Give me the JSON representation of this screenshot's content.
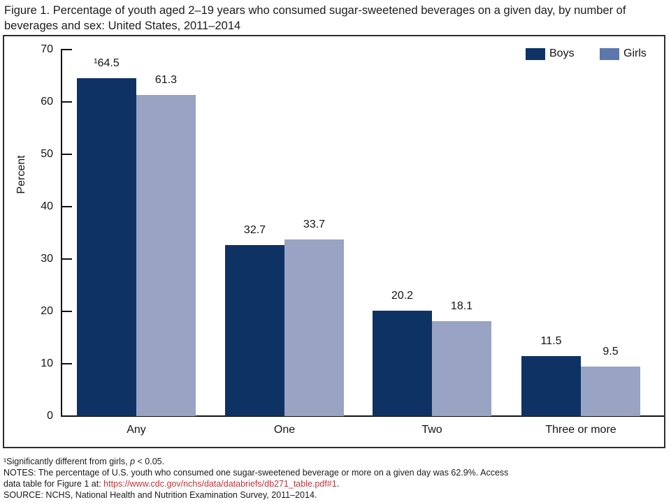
{
  "title_lines": [
    "Figure 1. Percentage of youth aged 2–19 years who consumed sugar-sweetened beverages on a given day, by number of",
    "beverages and sex: United States, 2011–2014"
  ],
  "chart_data": {
    "type": "bar",
    "title": "Figure 1. Percentage of youth aged 2–19 years who consumed sugar-sweetened beverages on a given day, by number of beverages and sex: United States, 2011–2014",
    "categories": [
      "Any",
      "One",
      "Two",
      "Three or more"
    ],
    "series": [
      {
        "name": "Boys",
        "color": "#0e3264",
        "values": [
          64.5,
          32.7,
          20.2,
          11.5
        ],
        "value_labels": [
          "¹64.5",
          "32.7",
          "20.2",
          "11.5"
        ]
      },
      {
        "name": "Girls",
        "color": "#99a3c4",
        "values": [
          61.3,
          33.7,
          18.1,
          9.5
        ],
        "value_labels": [
          "61.3",
          "33.7",
          "18.1",
          "9.5"
        ]
      }
    ],
    "xlabel": "",
    "ylabel": "Percent",
    "ylim": [
      0,
      70
    ],
    "yticks": [
      0,
      10,
      20,
      30,
      40,
      50,
      60,
      70
    ],
    "grid": false,
    "legend_position": "top-right"
  },
  "legend": {
    "items": [
      {
        "label": "Boys",
        "color": "#0e3264"
      },
      {
        "label": "Girls",
        "color": "#5d77ad"
      }
    ]
  },
  "footnotes": {
    "sig_pre": "¹Significantly different from girls, ",
    "sig_p": "p",
    "sig_post": " < 0.05.",
    "notes_line1": "NOTES: The percentage of U.S. youth who consumed one sugar-sweetened beverage or more on a given day was 62.9%. Access",
    "notes_line2_pre": "data table for Figure 1 at: ",
    "notes_link": "https://www.cdc.gov/nchs/data/databriefs/db271_table.pdf#1",
    "notes_line2_post": ".",
    "source": "SOURCE: NCHS, National Health and Nutrition Examination Survey, 2011–2014."
  },
  "colors": {
    "boys_bar": "#0e3264",
    "girls_bar": "#99a3c4",
    "girls_legend_swatch": "#5d77ad",
    "axis": "#111111",
    "frame_border": "#2e2e2e",
    "link_red": "#c2343c",
    "text": "#1a1a1a"
  }
}
